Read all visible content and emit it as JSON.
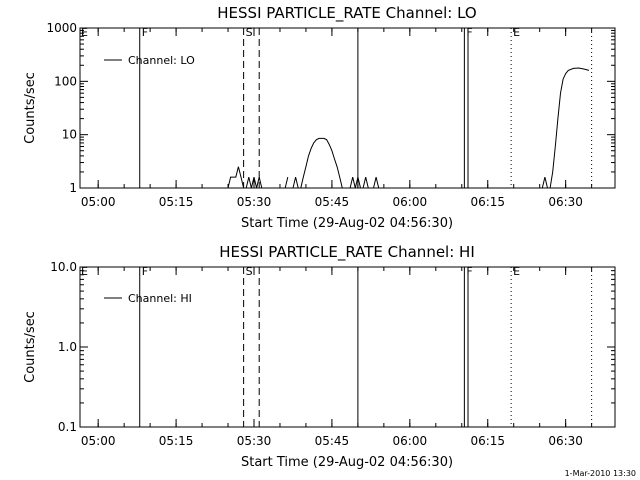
{
  "footer": {
    "timestamp": "1-Mar-2010 13:30"
  },
  "events": [
    {
      "time_min": 11.5,
      "style": "solid",
      "label": "F"
    },
    {
      "time_min": 31.5,
      "style": "dashed",
      "label": "S"
    },
    {
      "time_min": 34.5,
      "style": "dashed",
      "label": ""
    },
    {
      "time_min": 53.5,
      "style": "solid",
      "label": ""
    },
    {
      "time_min": 74.0,
      "style": "solid",
      "label": "F"
    },
    {
      "time_min": 74.7,
      "style": "solid",
      "label": ""
    },
    {
      "time_min": 83.0,
      "style": "dotted",
      "label": "E"
    },
    {
      "time_min": 98.5,
      "style": "dotted",
      "label": ""
    }
  ],
  "chart_data": [
    {
      "type": "line",
      "title": "HESSI PARTICLE_RATE Channel: LO",
      "xlabel": "Start Time (29-Aug-02 04:56:30)",
      "ylabel": "Counts/sec",
      "yscale": "log",
      "xlim": [
        0,
        103
      ],
      "ylim": [
        1,
        1000
      ],
      "xticks": [
        {
          "t": 3.5,
          "label": "05:00"
        },
        {
          "t": 18.5,
          "label": "05:15"
        },
        {
          "t": 33.5,
          "label": "05:30"
        },
        {
          "t": 48.5,
          "label": "05:45"
        },
        {
          "t": 63.5,
          "label": "06:00"
        },
        {
          "t": 78.5,
          "label": "06:15"
        },
        {
          "t": 93.5,
          "label": "06:30"
        }
      ],
      "yticks": [
        {
          "v": 1,
          "label": "1"
        },
        {
          "v": 10,
          "label": "10"
        },
        {
          "v": 100,
          "label": "100"
        },
        {
          "v": 1000,
          "label": "1000"
        }
      ],
      "corner_label": "E",
      "legend": {
        "label": "Channel: LO",
        "position": "top-left"
      },
      "series": [
        {
          "segments": [
            [
              [
                28.5,
                1
              ],
              [
                29,
                1.6
              ],
              [
                29.5,
                1.6
              ],
              [
                30,
                1.6
              ],
              [
                30.5,
                2.5
              ],
              [
                31,
                1.6
              ],
              [
                31.5,
                1
              ]
            ],
            [
              [
                32,
                1
              ],
              [
                32.5,
                1.6
              ],
              [
                33,
                1
              ],
              [
                33.5,
                1.6
              ],
              [
                34,
                1
              ],
              [
                34.5,
                1.6
              ],
              [
                35,
                1
              ]
            ],
            [
              [
                39.5,
                1
              ],
              [
                40,
                1.6
              ]
            ],
            [
              [
                41,
                1
              ],
              [
                41.5,
                1.6
              ],
              [
                42,
                1
              ]
            ],
            [
              [
                42.5,
                1
              ],
              [
                43,
                1.6
              ],
              [
                43.5,
                2.5
              ],
              [
                44,
                4
              ],
              [
                44.5,
                5.5
              ],
              [
                45,
                7
              ],
              [
                45.5,
                8
              ],
              [
                46,
                8.5
              ],
              [
                46.5,
                8.5
              ],
              [
                47,
                8.5
              ],
              [
                47.5,
                8
              ],
              [
                48,
                6.5
              ],
              [
                48.5,
                5
              ],
              [
                49,
                3.5
              ],
              [
                49.5,
                2.5
              ],
              [
                50,
                1.6
              ],
              [
                50.5,
                1
              ]
            ],
            [
              [
                52,
                1
              ],
              [
                52.5,
                1.6
              ],
              [
                53,
                1
              ],
              [
                53.5,
                1.6
              ],
              [
                54,
                1
              ]
            ],
            [
              [
                54.5,
                1
              ],
              [
                55,
                1.6
              ],
              [
                55.5,
                1
              ]
            ],
            [
              [
                56.5,
                1
              ],
              [
                57,
                1.6
              ],
              [
                57.5,
                1
              ]
            ],
            [
              [
                89,
                1
              ],
              [
                89.5,
                1.6
              ],
              [
                90,
                1
              ]
            ],
            [
              [
                90.5,
                1
              ],
              [
                91,
                2
              ],
              [
                91.5,
                6
              ],
              [
                92,
                20
              ],
              [
                92.5,
                60
              ],
              [
                93,
                110
              ],
              [
                93.5,
                140
              ],
              [
                94,
                160
              ],
              [
                95,
                175
              ],
              [
                96,
                178
              ],
              [
                97,
                170
              ],
              [
                98,
                160
              ]
            ]
          ]
        }
      ]
    },
    {
      "type": "line",
      "title": "HESSI PARTICLE_RATE Channel: HI",
      "xlabel": "Start Time (29-Aug-02 04:56:30)",
      "ylabel": "Counts/sec",
      "yscale": "log",
      "xlim": [
        0,
        103
      ],
      "ylim": [
        0.1,
        10
      ],
      "xticks": [
        {
          "t": 3.5,
          "label": "05:00"
        },
        {
          "t": 18.5,
          "label": "05:15"
        },
        {
          "t": 33.5,
          "label": "05:30"
        },
        {
          "t": 48.5,
          "label": "05:45"
        },
        {
          "t": 63.5,
          "label": "06:00"
        },
        {
          "t": 78.5,
          "label": "06:15"
        },
        {
          "t": 93.5,
          "label": "06:30"
        }
      ],
      "yticks": [
        {
          "v": 0.1,
          "label": "0.1"
        },
        {
          "v": 1,
          "label": "1.0"
        },
        {
          "v": 10,
          "label": "10.0"
        }
      ],
      "corner_label": "E",
      "legend": {
        "label": "Channel: HI",
        "position": "top-left"
      },
      "series": [
        {
          "segments": []
        }
      ]
    }
  ]
}
